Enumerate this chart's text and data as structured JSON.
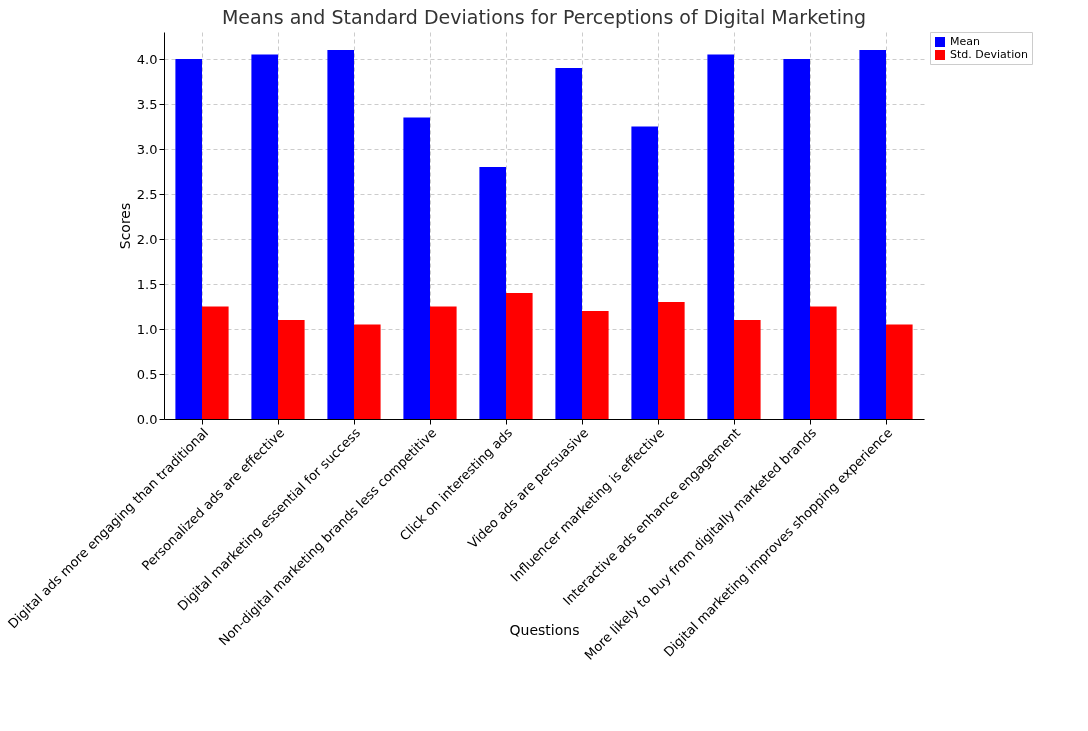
{
  "chart_data": {
    "type": "bar",
    "title": "Means and Standard Deviations for Perceptions of Digital Marketing",
    "xlabel": "Questions",
    "ylabel": "Scores",
    "categories": [
      "Digital ads more engaging than traditional",
      "Personalized ads are effective",
      "Digital marketing essential for success",
      "Non-digital marketing brands less competitive",
      "Click on interesting ads",
      "Video ads are persuasive",
      "Influencer marketing is effective",
      "Interactive ads enhance engagement",
      "More likely to buy from digitally marketed brands",
      "Digital marketing improves shopping experience"
    ],
    "series": [
      {
        "name": "Mean",
        "color": "#0000ff",
        "values": [
          4.0,
          4.05,
          4.1,
          3.35,
          2.8,
          3.9,
          3.25,
          4.05,
          4.0,
          4.1
        ]
      },
      {
        "name": "Std. Deviation",
        "color": "#ff0000",
        "values": [
          1.25,
          1.1,
          1.05,
          1.25,
          1.4,
          1.2,
          1.3,
          1.1,
          1.25,
          1.05
        ]
      }
    ],
    "ylim": [
      0,
      4.3
    ],
    "yticks": [
      {
        "value": 0,
        "label": "0.0"
      },
      0.5,
      {
        "value": 1,
        "label": "1.0"
      },
      1.5,
      {
        "value": 2,
        "label": "2.0"
      },
      2.5,
      {
        "value": 3,
        "label": "3.0"
      },
      3.5,
      {
        "value": 4,
        "label": "4.0"
      }
    ],
    "grid": true,
    "legend": "top right"
  }
}
